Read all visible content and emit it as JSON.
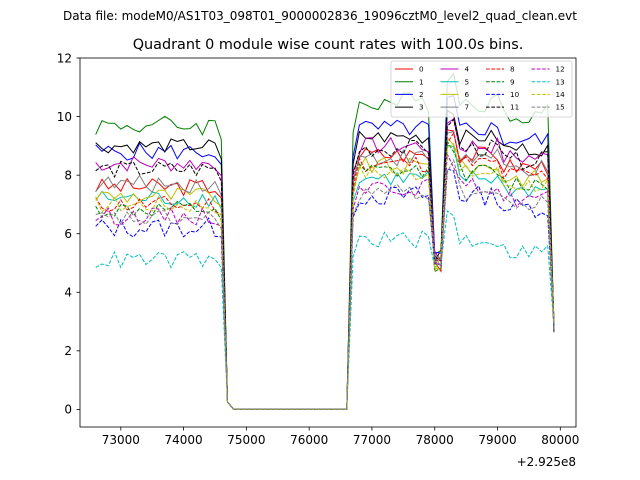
{
  "header_text": "Data file: modeM0/AS1T03_098T01_9000002836_19096cztM0_level2_quad_clean.evt",
  "chart_data": {
    "type": "line",
    "title": "Quadrant 0 module wise count rates with 100.0s bins.",
    "xlabel": "",
    "ylabel": "",
    "x_offset_label": "+2.925e8",
    "xlim": [
      72350,
      80250
    ],
    "ylim": [
      -0.6,
      12.0
    ],
    "xticks": [
      73000,
      74000,
      75000,
      76000,
      77000,
      78000,
      79000,
      80000
    ],
    "yticks": [
      0,
      2,
      4,
      6,
      8,
      10,
      12
    ],
    "x_start": 72600,
    "x_step": 100,
    "n_points": 74,
    "legend_position": "top-right",
    "legend_columns": 4,
    "series": [
      {
        "name": "0",
        "color": "#ff0000",
        "dash": "solid",
        "pre_gap": 7.6,
        "post_gap": 8.7,
        "noise": 0.3,
        "dip": 5.0
      },
      {
        "name": "1",
        "color": "#008000",
        "dash": "solid",
        "pre_gap": 9.7,
        "post_gap": 10.5,
        "noise": 0.35,
        "dip": 5.5
      },
      {
        "name": "2",
        "color": "#0000ff",
        "dash": "solid",
        "pre_gap": 8.8,
        "post_gap": 9.6,
        "noise": 0.3,
        "dip": 5.2
      },
      {
        "name": "3",
        "color": "#000000",
        "dash": "solid",
        "pre_gap": 9.0,
        "post_gap": 9.3,
        "noise": 0.25,
        "dip": 5.3
      },
      {
        "name": "4",
        "color": "#bf00bf",
        "dash": "solid",
        "pre_gap": 8.4,
        "post_gap": 9.0,
        "noise": 0.3,
        "dip": 5.1
      },
      {
        "name": "5",
        "color": "#00bfbf",
        "dash": "solid",
        "pre_gap": 7.2,
        "post_gap": 7.9,
        "noise": 0.3,
        "dip": 5.0
      },
      {
        "name": "6",
        "color": "#bfbf00",
        "dash": "solid",
        "pre_gap": 7.3,
        "post_gap": 8.3,
        "noise": 0.3,
        "dip": 5.0
      },
      {
        "name": "7",
        "color": "#808080",
        "dash": "solid",
        "pre_gap": 7.7,
        "post_gap": 8.6,
        "noise": 0.3,
        "dip": 5.1
      },
      {
        "name": "8",
        "color": "#ff0000",
        "dash": "dashed",
        "pre_gap": 7.0,
        "post_gap": 8.4,
        "noise": 0.3,
        "dip": 5.0
      },
      {
        "name": "9",
        "color": "#008000",
        "dash": "dashed",
        "pre_gap": 6.8,
        "post_gap": 8.1,
        "noise": 0.3,
        "dip": 5.0
      },
      {
        "name": "10",
        "color": "#0000ff",
        "dash": "dashed",
        "pre_gap": 6.2,
        "post_gap": 7.3,
        "noise": 0.35,
        "dip": 4.9
      },
      {
        "name": "11",
        "color": "#000000",
        "dash": "dashed",
        "pre_gap": 8.2,
        "post_gap": 8.9,
        "noise": 0.3,
        "dip": 5.2
      },
      {
        "name": "12",
        "color": "#bf00bf",
        "dash": "dashed",
        "pre_gap": 6.6,
        "post_gap": 7.6,
        "noise": 0.3,
        "dip": 5.0
      },
      {
        "name": "13",
        "color": "#00bfbf",
        "dash": "dashed",
        "pre_gap": 5.1,
        "post_gap": 5.8,
        "noise": 0.3,
        "dip": 4.9
      },
      {
        "name": "14",
        "color": "#bfbf00",
        "dash": "dashed",
        "pre_gap": 7.0,
        "post_gap": 8.1,
        "noise": 0.3,
        "dip": 5.0
      },
      {
        "name": "15",
        "color": "#808080",
        "dash": "dashed",
        "pre_gap": 6.5,
        "post_gap": 7.4,
        "noise": 0.3,
        "dip": 5.0
      }
    ]
  }
}
